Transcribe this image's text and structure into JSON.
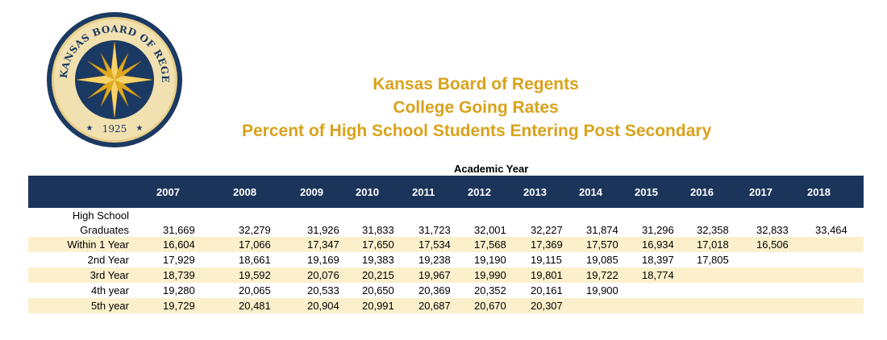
{
  "seal": {
    "text_top": "THE KANSAS BOARD OF REGENTS",
    "year": "1925",
    "colors": {
      "navy": "#1b3a63",
      "gold": "#d9a21b",
      "cream": "#f0dba2"
    }
  },
  "titles": {
    "line1": "Kansas Board of Regents",
    "line2": "College Going Rates",
    "line3": "Percent of High School Students Entering Post Secondary"
  },
  "table": {
    "group_header": "Academic Year",
    "years": [
      "2007",
      "2008",
      "2009",
      "2010",
      "2011",
      "2012",
      "2013",
      "2014",
      "2015",
      "2016",
      "2017",
      "2018"
    ],
    "hs_label_line1": "High School",
    "hs_label_line2": "Graduates",
    "rows": [
      {
        "label": "Graduates",
        "values": [
          "31,669",
          "32,279",
          "31,926",
          "31,833",
          "31,723",
          "32,001",
          "32,227",
          "31,874",
          "31,296",
          "32,358",
          "32,833",
          "33,464"
        ]
      },
      {
        "label": "Within 1 Year",
        "values": [
          "16,604",
          "17,066",
          "17,347",
          "17,650",
          "17,534",
          "17,568",
          "17,369",
          "17,570",
          "16,934",
          "17,018",
          "16,506"
        ]
      },
      {
        "label": "2nd Year",
        "values": [
          "17,929",
          "18,661",
          "19,169",
          "19,383",
          "19,238",
          "19,190",
          "19,115",
          "19,085",
          "18,397",
          "17,805"
        ]
      },
      {
        "label": "3rd Year",
        "values": [
          "18,739",
          "19,592",
          "20,076",
          "20,215",
          "19,967",
          "19,990",
          "19,801",
          "19,722",
          "18,774"
        ]
      },
      {
        "label": "4th year",
        "values": [
          "19,280",
          "20,065",
          "20,533",
          "20,650",
          "20,369",
          "20,352",
          "20,161",
          "19,900"
        ]
      },
      {
        "label": "5th year",
        "values": [
          "19,729",
          "20,481",
          "20,904",
          "20,991",
          "20,687",
          "20,670",
          "20,307"
        ]
      }
    ],
    "colors": {
      "header_bg": "#1b355a",
      "header_text": "#ffffff",
      "shade": "#fcf0cc",
      "title_gold": "#d9a21b"
    }
  }
}
